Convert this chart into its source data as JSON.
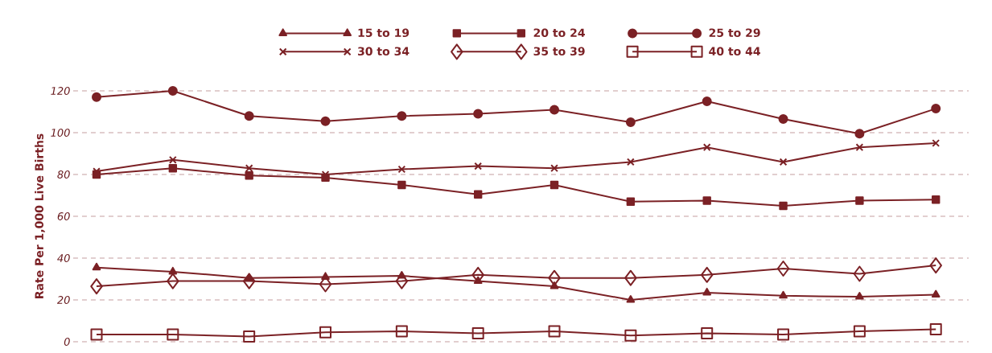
{
  "chart_data": {
    "type": "line",
    "ylabel": "Rate Per 1,000 Live Births",
    "categories": [
      null,
      null,
      null,
      null,
      null,
      null,
      null,
      null,
      null,
      null,
      null,
      null
    ],
    "ylim": [
      0,
      120
    ],
    "yticks": [
      0,
      20,
      40,
      60,
      80,
      100,
      120
    ],
    "grid": "y",
    "legend": "top",
    "line_style": "solid",
    "series": [
      {
        "name": "15 to 19",
        "color": "#7b2125",
        "marker": "triangle",
        "values": [
          35.5,
          33.5,
          30.5,
          31,
          31.5,
          29,
          26.5,
          20,
          23.5,
          22,
          21.5,
          22.5
        ]
      },
      {
        "name": "20 to 24",
        "color": "#7b2125",
        "marker": "square",
        "values": [
          80,
          83,
          79.5,
          78.5,
          75,
          70.5,
          75,
          67,
          67.5,
          65,
          67.5,
          68
        ]
      },
      {
        "name": "25 to 29",
        "color": "#7b2125",
        "marker": "circle",
        "values": [
          117,
          120,
          108,
          105.5,
          108,
          109,
          111,
          105,
          115,
          106.5,
          99.5,
          111.5
        ]
      },
      {
        "name": "30 to 34",
        "color": "#7b2125",
        "marker": "cross",
        "values": [
          81.5,
          87,
          83,
          80,
          82.5,
          84,
          83,
          86,
          93,
          86,
          93,
          95
        ]
      },
      {
        "name": "35 to 39",
        "color": "#7b2125",
        "marker": "diamond-open",
        "values": [
          26.5,
          29,
          29,
          27.5,
          29,
          32,
          30.5,
          30.5,
          32,
          35,
          32.5,
          36.5
        ]
      },
      {
        "name": "40 to 44",
        "color": "#7b2125",
        "marker": "square-open",
        "values": [
          3.5,
          3.5,
          2.5,
          4.5,
          5,
          4,
          5,
          3,
          4,
          3.5,
          5,
          6
        ]
      }
    ]
  }
}
